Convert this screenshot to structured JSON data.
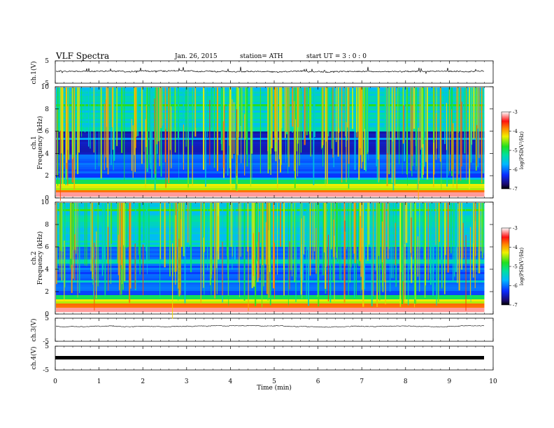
{
  "header": {
    "title": "VLF  Spectra",
    "date": "Jan. 26, 2015",
    "station": "station= ATH",
    "start": "start  UT  =   3  : 0  : 0"
  },
  "chart_data": [
    {
      "type": "line",
      "name": "ch1-waveform",
      "ylabel": "ch.1(V)",
      "ylim": [
        -5,
        5
      ],
      "yticks": [
        "5",
        "-5"
      ],
      "xlim": [
        0,
        10
      ],
      "approx_level": 0.3
    },
    {
      "type": "heatmap",
      "name": "ch1-spectrogram",
      "ylabel": "ch.1\nFrequency  (kHz)",
      "ylim": [
        0,
        10
      ],
      "yticks": [
        "0",
        "2",
        "4",
        "6",
        "8",
        "10"
      ],
      "xlim": [
        0,
        9.8
      ],
      "colorbar": {
        "label": "log(PSD(V²/Hz)",
        "ticks": [
          "-7",
          "-6",
          "-5",
          "-4",
          "-3"
        ],
        "range": [
          -7,
          -3
        ]
      }
    },
    {
      "type": "heatmap",
      "name": "ch2-spectrogram",
      "ylabel": "ch.2\nFrequency  (kHz)",
      "ylim": [
        0,
        10
      ],
      "yticks": [
        "0",
        "2",
        "4",
        "6",
        "8",
        "10"
      ],
      "xlim": [
        0,
        9.8
      ],
      "colorbar": {
        "label": "log(PSD(V²/Hz)",
        "ticks": [
          "-7",
          "-6",
          "-5",
          "-4",
          "-3"
        ],
        "range": [
          -7,
          -3
        ]
      }
    },
    {
      "type": "line",
      "name": "ch3-waveform",
      "ylabel": "ch.3(V)",
      "ylim": [
        -5,
        5
      ],
      "yticks": [
        "5",
        "-5"
      ],
      "approx_level": 1.5
    },
    {
      "type": "line",
      "name": "ch4-waveform",
      "ylabel": "ch.4(V)",
      "ylim": [
        -5,
        5
      ],
      "yticks": [
        "5",
        "-5"
      ],
      "approx_level": 0.0
    }
  ],
  "xaxis": {
    "label": "Time  (min)",
    "range": [
      0,
      10
    ],
    "ticks": [
      "0",
      "1",
      "2",
      "3",
      "4",
      "5",
      "6",
      "7",
      "8",
      "9",
      "10"
    ]
  }
}
